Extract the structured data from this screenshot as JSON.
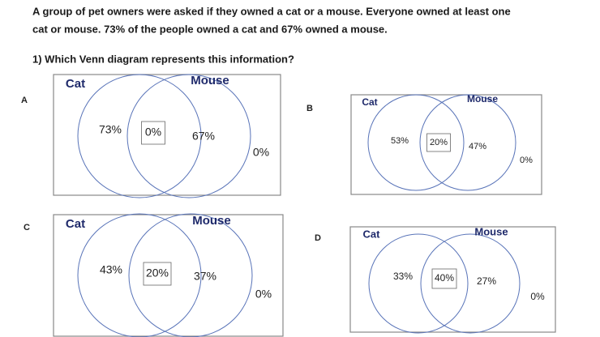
{
  "question": {
    "lines": [
      "A group of pet owners were asked if they owned a cat or a mouse. Everyone owned at least one",
      "cat or mouse. 73% of the people owned a cat and 67% owned a mouse."
    ],
    "prompt": "1) Which Venn diagram represents this information?"
  },
  "options": [
    {
      "letter": "A",
      "left_label": "Cat",
      "right_label": "Mouse",
      "left_only": "73%",
      "both": "0%",
      "right_only": "67%",
      "neither": "0%"
    },
    {
      "letter": "B",
      "left_label": "Cat",
      "right_label": "Mouse",
      "left_only": "53%",
      "both": "20%",
      "right_only": "47%",
      "neither": "0%"
    },
    {
      "letter": "C",
      "left_label": "Cat",
      "right_label": "Mouse",
      "left_only": "43%",
      "both": "20%",
      "right_only": "37%",
      "neither": "0%"
    },
    {
      "letter": "D",
      "left_label": "Cat",
      "right_label": "Mouse",
      "left_only": "33%",
      "both": "40%",
      "right_only": "27%",
      "neither": "0%"
    }
  ]
}
